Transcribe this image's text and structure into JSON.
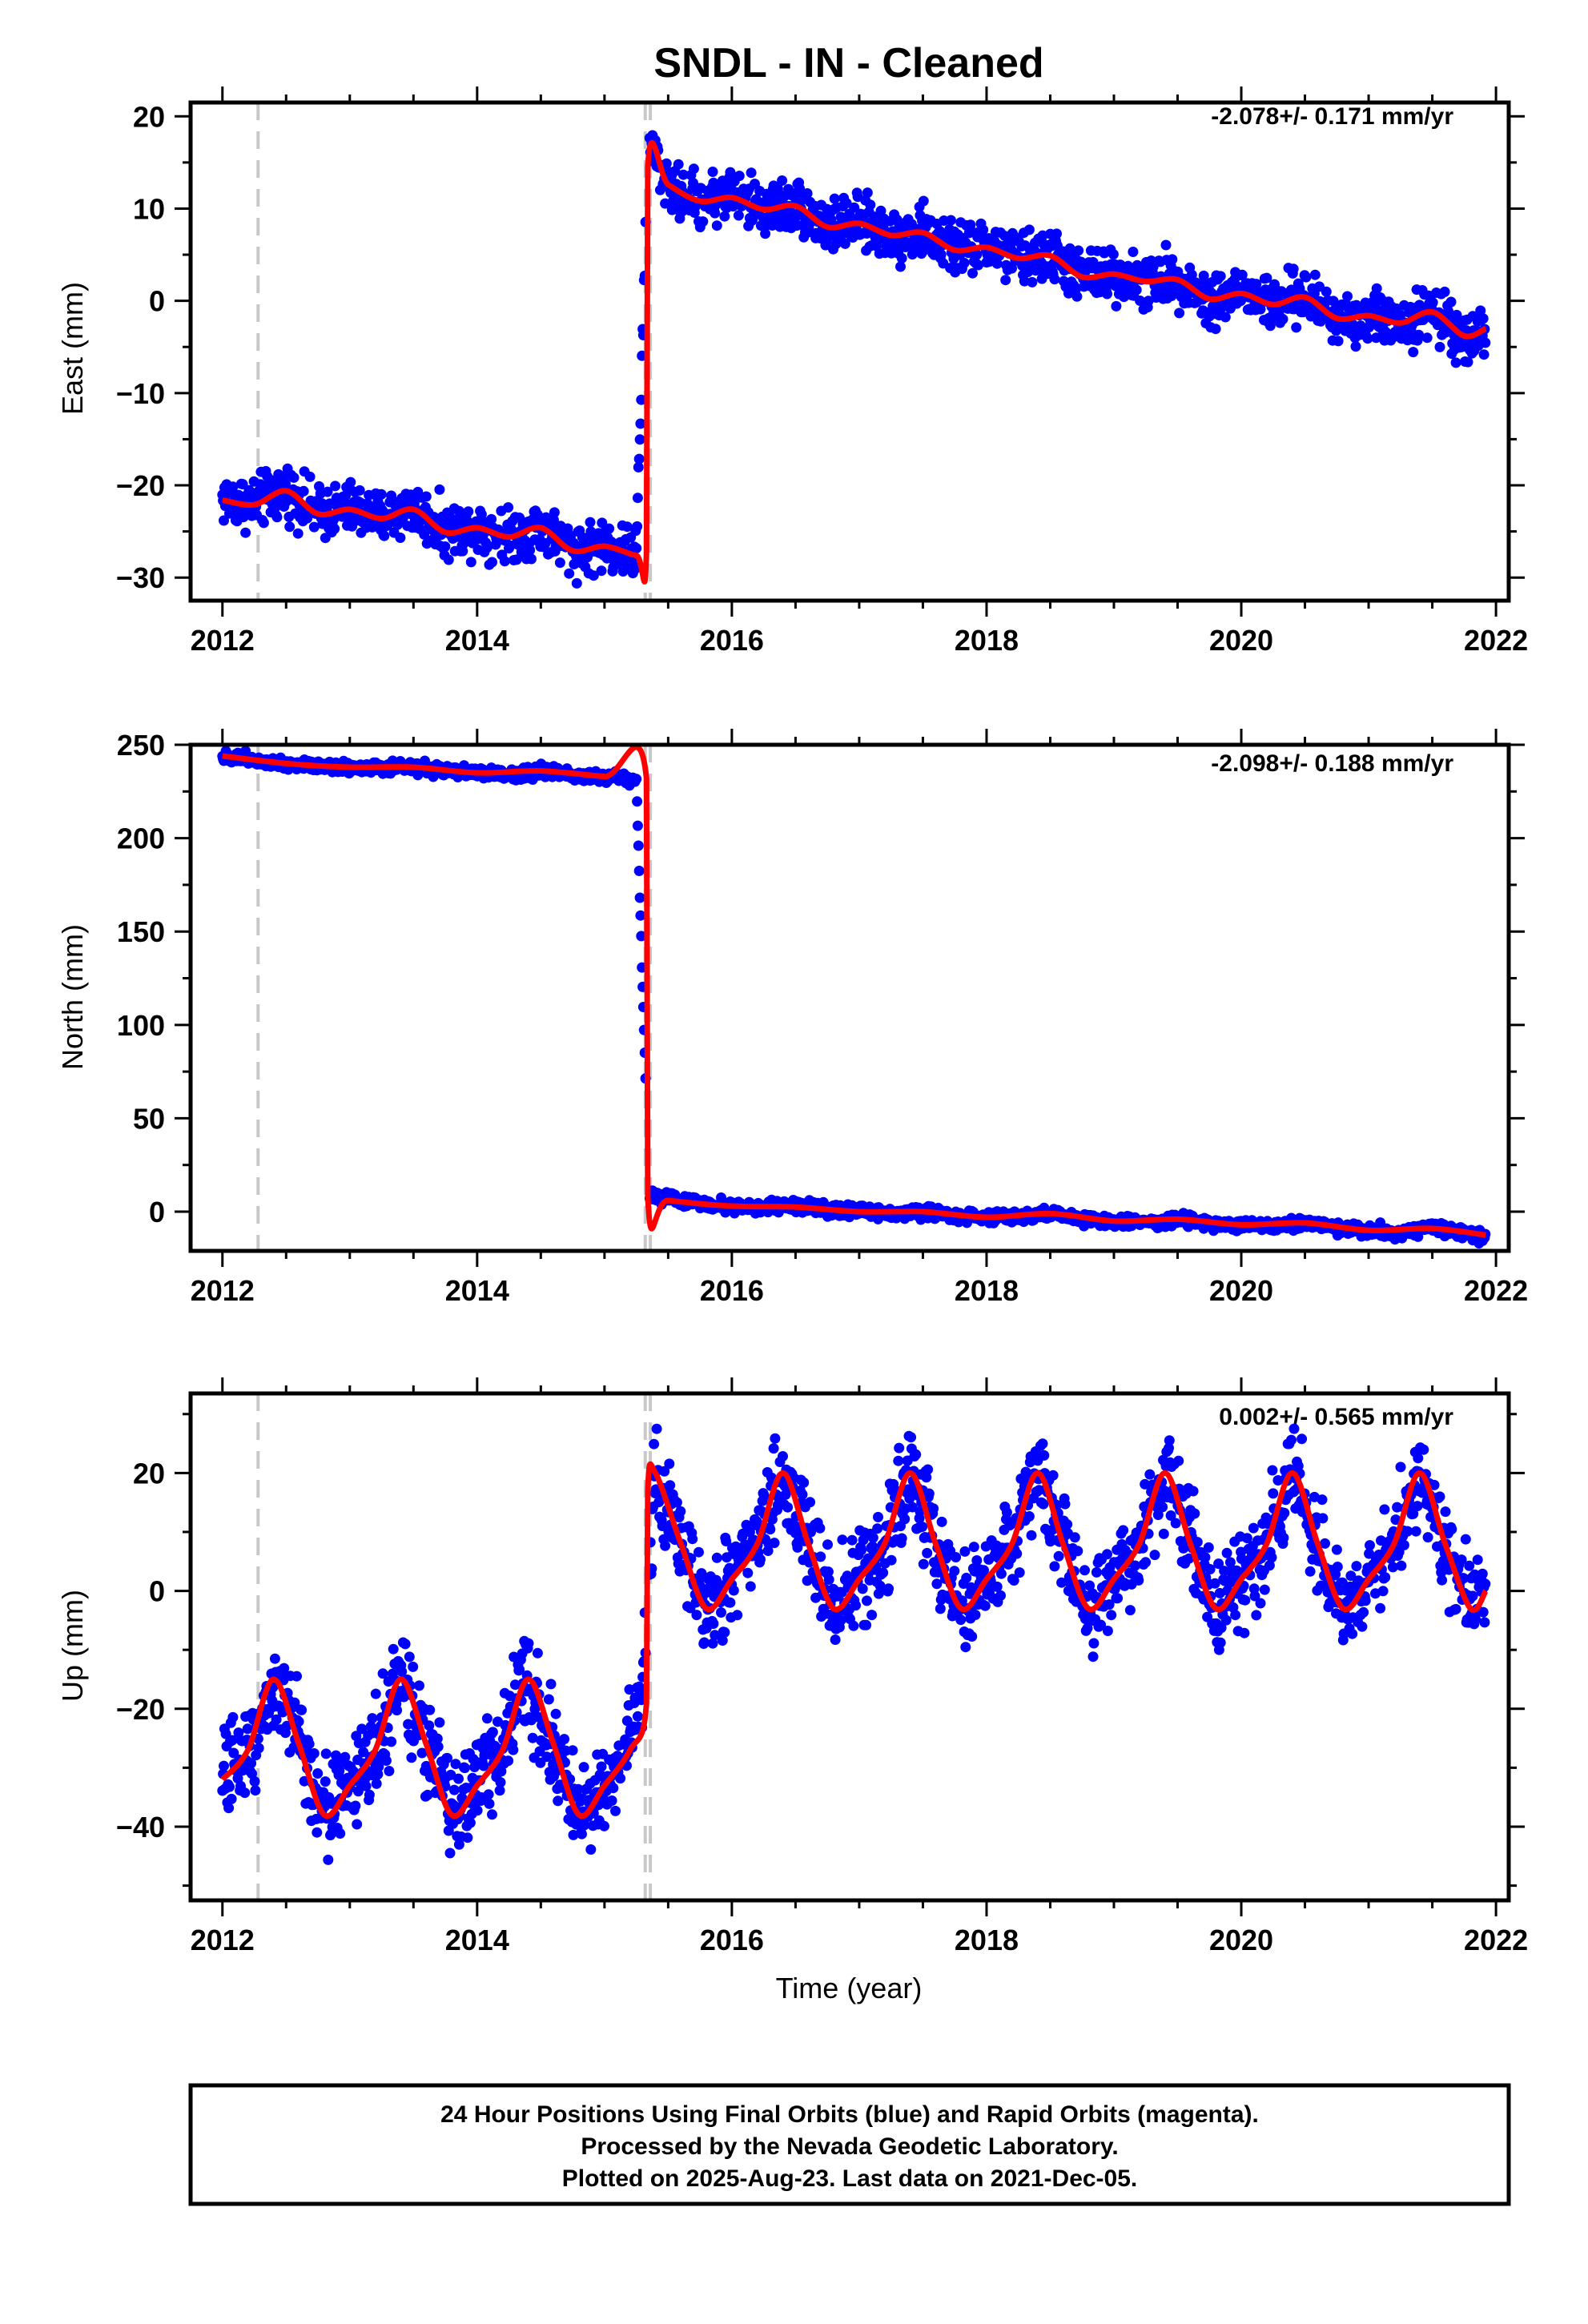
{
  "title": "SNDL  - IN - Cleaned",
  "x_axis_label": "Time (year)",
  "footer": {
    "line1": "24 Hour Positions Using Final Orbits (blue) and Rapid Orbits (magenta).",
    "line2": "Processed by the Nevada Geodetic Laboratory.",
    "line3": "Plotted on 2025-Aug-23. Last data on 2021-Dec-05."
  },
  "colors": {
    "data_points": "#0000ff",
    "model_fit": "#ff0000",
    "event_lines": "#c8c8c8",
    "frame": "#000000"
  },
  "chart_data": [
    {
      "type": "scatter",
      "ylabel": "East (mm)",
      "rate_text": "-2.078+/- 0.171 mm/yr",
      "xlim": [
        2011.75,
        2022.1
      ],
      "ylim": [
        -32.5,
        21.5
      ],
      "xticks": [
        2012,
        2014,
        2016,
        2018,
        2020,
        2022
      ],
      "yticks": [
        -30,
        -20,
        -10,
        0,
        10,
        20
      ],
      "event_lines_x": [
        2012.28,
        2015.32,
        2015.36
      ],
      "series": [
        {
          "role": "data-points",
          "color": "#0000ff",
          "x": [
            2012.0,
            2012.25,
            2012.5,
            2012.75,
            2013.0,
            2013.25,
            2013.5,
            2013.75,
            2014.0,
            2014.25,
            2014.5,
            2014.75,
            2015.0,
            2015.25,
            2015.35,
            2015.5,
            2015.75,
            2016.0,
            2016.25,
            2016.5,
            2016.75,
            2017.0,
            2017.25,
            2017.5,
            2017.75,
            2018.0,
            2018.25,
            2018.5,
            2018.75,
            2019.0,
            2019.25,
            2019.5,
            2019.75,
            2020.0,
            2020.25,
            2020.5,
            2020.75,
            2021.0,
            2021.25,
            2021.5,
            2021.75,
            2021.92
          ],
          "y": [
            -21.5,
            -22,
            -20.5,
            -23,
            -22.5,
            -23.5,
            -22.5,
            -25,
            -24.5,
            -25.5,
            -24.5,
            -27,
            -26.5,
            -27.5,
            18,
            12,
            11,
            11.5,
            10,
            10.5,
            8,
            8.5,
            7,
            7.5,
            5.5,
            6,
            4.5,
            5,
            2.5,
            3,
            2,
            2.5,
            0,
            1,
            -0.5,
            0.5,
            -2,
            -1.5,
            -2.5,
            -1,
            -4,
            -3
          ]
        },
        {
          "role": "model-fit",
          "color": "#ff0000",
          "x": [
            2012.0,
            2012.25,
            2012.5,
            2012.75,
            2013.0,
            2013.25,
            2013.5,
            2013.75,
            2014.0,
            2014.25,
            2014.5,
            2014.75,
            2015.0,
            2015.25,
            2015.33,
            2015.34,
            2015.5,
            2015.75,
            2016.0,
            2016.25,
            2016.5,
            2016.75,
            2017.0,
            2017.25,
            2017.5,
            2017.75,
            2018.0,
            2018.25,
            2018.5,
            2018.75,
            2019.0,
            2019.25,
            2019.5,
            2019.75,
            2020.0,
            2020.25,
            2020.5,
            2020.75,
            2021.0,
            2021.25,
            2021.5,
            2021.75,
            2021.92
          ],
          "y": [
            -21.6,
            -22.1,
            -20.6,
            -23.1,
            -22.6,
            -23.6,
            -22.6,
            -25.1,
            -24.6,
            -25.6,
            -24.6,
            -27.1,
            -26.6,
            -27.6,
            -27.2,
            14.5,
            12.6,
            10.8,
            11.2,
            9.9,
            10.3,
            8.0,
            8.4,
            7.1,
            7.4,
            5.5,
            5.8,
            4.6,
            4.9,
            2.6,
            2.9,
            2.1,
            2.3,
            0.2,
            0.8,
            -0.4,
            0.4,
            -1.9,
            -1.6,
            -2.4,
            -1.2,
            -3.8,
            -3.0
          ]
        }
      ]
    },
    {
      "type": "scatter",
      "ylabel": "North (mm)",
      "rate_text": "-2.098+/- 0.188 mm/yr",
      "xlim": [
        2011.75,
        2022.1
      ],
      "ylim": [
        -21,
        250
      ],
      "xticks": [
        2012,
        2014,
        2016,
        2018,
        2020,
        2022
      ],
      "yticks": [
        0,
        50,
        100,
        150,
        200,
        250
      ],
      "event_lines_x": [
        2012.28,
        2015.32,
        2015.36
      ],
      "series": [
        {
          "role": "data-points",
          "color": "#0000ff",
          "x": [
            2012.0,
            2012.25,
            2012.5,
            2012.75,
            2013.0,
            2013.25,
            2013.5,
            2013.75,
            2014.0,
            2014.25,
            2014.5,
            2014.75,
            2015.0,
            2015.25,
            2015.35,
            2015.5,
            2015.75,
            2016.0,
            2016.25,
            2016.5,
            2016.75,
            2017.0,
            2017.25,
            2017.5,
            2017.75,
            2018.0,
            2018.25,
            2018.5,
            2018.75,
            2019.0,
            2019.25,
            2019.5,
            2019.75,
            2020.0,
            2020.25,
            2020.5,
            2020.75,
            2021.0,
            2021.25,
            2021.5,
            2021.75,
            2021.92
          ],
          "y": [
            244,
            242,
            240,
            239,
            238,
            237,
            238,
            236,
            235,
            234,
            236,
            234,
            233,
            232,
            9,
            7,
            5,
            3,
            2,
            3,
            1,
            0,
            -1,
            0,
            -2,
            -3,
            -3,
            -1,
            -4,
            -5,
            -6,
            -4,
            -7,
            -7,
            -8,
            -6,
            -9,
            -10,
            -11,
            -9,
            -11,
            -13
          ]
        },
        {
          "role": "model-fit",
          "color": "#ff0000",
          "x": [
            2012.0,
            2012.5,
            2013.0,
            2013.5,
            2014.0,
            2014.5,
            2015.0,
            2015.33,
            2015.34,
            2015.5,
            2016.0,
            2016.5,
            2017.0,
            2017.5,
            2018.0,
            2018.5,
            2019.0,
            2019.5,
            2020.0,
            2020.5,
            2021.0,
            2021.5,
            2021.92
          ],
          "y": [
            244,
            240,
            238,
            238,
            235,
            236,
            233,
            232,
            8,
            6,
            3,
            2.5,
            0,
            0,
            -3,
            -1,
            -5,
            -4,
            -7,
            -6,
            -10,
            -9,
            -12.5
          ]
        }
      ]
    },
    {
      "type": "scatter",
      "ylabel": "Up (mm)",
      "rate_text": "0.002+/- 0.565 mm/yr",
      "xlim": [
        2011.75,
        2022.1
      ],
      "ylim": [
        -52.5,
        33.5
      ],
      "xticks": [
        2012,
        2014,
        2016,
        2018,
        2020,
        2022
      ],
      "yticks": [
        -40,
        -20,
        0,
        20
      ],
      "event_lines_x": [
        2012.28,
        2015.32,
        2015.36
      ],
      "series": [
        {
          "role": "data-points",
          "color": "#0000ff",
          "x": [
            2012.0,
            2012.2,
            2012.4,
            2012.6,
            2012.8,
            2013.0,
            2013.2,
            2013.4,
            2013.6,
            2013.8,
            2014.0,
            2014.2,
            2014.4,
            2014.6,
            2014.8,
            2015.0,
            2015.2,
            2015.3,
            2015.4,
            2015.6,
            2015.8,
            2016.0,
            2016.2,
            2016.4,
            2016.6,
            2016.8,
            2017.0,
            2017.2,
            2017.4,
            2017.6,
            2017.8,
            2018.0,
            2018.2,
            2018.4,
            2018.6,
            2018.8,
            2019.0,
            2019.2,
            2019.4,
            2019.6,
            2019.8,
            2020.0,
            2020.2,
            2020.4,
            2020.6,
            2020.8,
            2021.0,
            2021.2,
            2021.4,
            2021.6,
            2021.8,
            2021.92
          ],
          "y": [
            -32,
            -27,
            -16,
            -25,
            -37,
            -33,
            -27,
            -15,
            -26,
            -38,
            -32,
            -26,
            -15,
            -27,
            -38,
            -33,
            -25,
            -17,
            20,
            8,
            -3,
            2,
            8,
            20,
            8,
            -3,
            2,
            8,
            20,
            8,
            -3,
            2,
            8,
            20,
            8,
            -3,
            2,
            8,
            20,
            8,
            -3,
            2,
            8,
            20,
            8,
            -3,
            2,
            8,
            20,
            8,
            -2,
            0
          ]
        },
        {
          "role": "model-fit",
          "color": "#ff0000",
          "x": [
            2012.0,
            2012.2,
            2012.4,
            2012.6,
            2012.8,
            2013.0,
            2013.2,
            2013.4,
            2013.6,
            2013.8,
            2014.0,
            2014.2,
            2014.4,
            2014.6,
            2014.8,
            2015.0,
            2015.2,
            2015.33,
            2015.34,
            2015.4,
            2015.6,
            2015.8,
            2016.0,
            2016.2,
            2016.4,
            2016.6,
            2016.8,
            2017.0,
            2017.2,
            2017.4,
            2017.6,
            2017.8,
            2018.0,
            2018.2,
            2018.4,
            2018.6,
            2018.8,
            2019.0,
            2019.2,
            2019.4,
            2019.6,
            2019.8,
            2020.0,
            2020.2,
            2020.4,
            2020.6,
            2020.8,
            2021.0,
            2021.2,
            2021.4,
            2021.6,
            2021.8,
            2021.92
          ],
          "y": [
            -32,
            -27,
            -15,
            -26,
            -38,
            -33,
            -27,
            -15,
            -26,
            -38,
            -33,
            -27,
            -15,
            -26,
            -38,
            -33,
            -27,
            -19,
            17,
            20,
            8,
            -3,
            2,
            8,
            20,
            8,
            -3,
            2,
            8,
            20,
            8,
            -3,
            2,
            8,
            20,
            8,
            -3,
            2,
            8,
            20,
            8,
            -3,
            2,
            8,
            20,
            8,
            -3,
            2,
            8,
            20,
            8,
            -3,
            0
          ]
        }
      ]
    }
  ]
}
